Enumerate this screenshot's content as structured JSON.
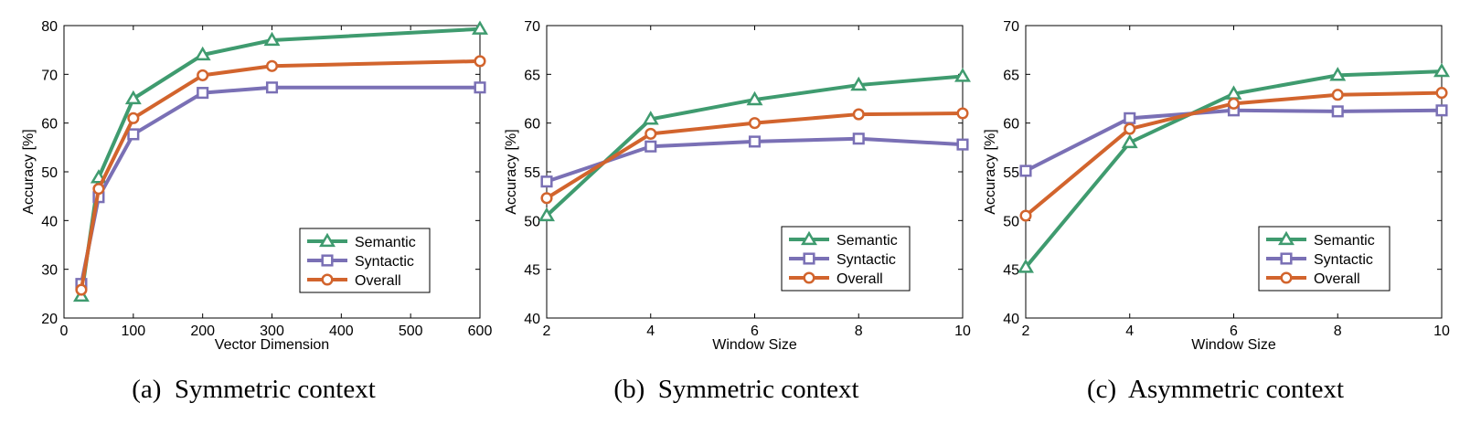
{
  "colors": {
    "semantic": "#3f9b6f",
    "syntactic": "#7a70b5",
    "overall": "#d2642d"
  },
  "chart_data": [
    {
      "type": "line",
      "caption": "(a)  Symmetric context",
      "xlabel": "Vector Dimension",
      "ylabel": "Accuracy [%]",
      "xlim": [
        0,
        600
      ],
      "ylim": [
        20,
        80
      ],
      "xticks": [
        0,
        100,
        200,
        300,
        400,
        500,
        600
      ],
      "yticks": [
        20,
        30,
        40,
        50,
        60,
        70,
        80
      ],
      "x": [
        25,
        50,
        100,
        200,
        300,
        600
      ],
      "legend": "bottom-right",
      "series": [
        {
          "name": "Semantic",
          "marker": "triangle",
          "values": [
            24.5,
            48.8,
            65.0,
            74.0,
            77.0,
            79.3
          ]
        },
        {
          "name": "Syntactic",
          "marker": "square",
          "values": [
            27.0,
            44.8,
            57.7,
            66.2,
            67.3,
            67.3
          ]
        },
        {
          "name": "Overall",
          "marker": "circle",
          "values": [
            25.8,
            46.5,
            61.0,
            69.8,
            71.7,
            72.7
          ]
        }
      ]
    },
    {
      "type": "line",
      "caption": "(b)  Symmetric context",
      "xlabel": "Window Size",
      "ylabel": "Accuracy [%]",
      "xlim": [
        2,
        10
      ],
      "ylim": [
        40,
        70
      ],
      "xticks": [
        2,
        4,
        6,
        8,
        10
      ],
      "yticks": [
        40,
        45,
        50,
        55,
        60,
        65,
        70
      ],
      "x": [
        2,
        4,
        6,
        8,
        10
      ],
      "legend": "bottom-right",
      "series": [
        {
          "name": "Semantic",
          "marker": "triangle",
          "values": [
            50.5,
            60.4,
            62.4,
            63.9,
            64.8
          ]
        },
        {
          "name": "Syntactic",
          "marker": "square",
          "values": [
            54.0,
            57.6,
            58.1,
            58.4,
            57.8
          ]
        },
        {
          "name": "Overall",
          "marker": "circle",
          "values": [
            52.3,
            58.9,
            60.0,
            60.9,
            61.0
          ]
        }
      ]
    },
    {
      "type": "line",
      "caption": "(c)  Asymmetric context",
      "xlabel": "Window Size",
      "ylabel": "Accuracy [%]",
      "xlim": [
        2,
        10
      ],
      "ylim": [
        40,
        70
      ],
      "xticks": [
        2,
        4,
        6,
        8,
        10
      ],
      "yticks": [
        40,
        45,
        50,
        55,
        60,
        65,
        70
      ],
      "x": [
        2,
        4,
        6,
        8,
        10
      ],
      "legend": "bottom-right",
      "series": [
        {
          "name": "Semantic",
          "marker": "triangle",
          "values": [
            45.2,
            58.0,
            63.0,
            64.9,
            65.3
          ]
        },
        {
          "name": "Syntactic",
          "marker": "square",
          "values": [
            55.1,
            60.5,
            61.3,
            61.2,
            61.3
          ]
        },
        {
          "name": "Overall",
          "marker": "circle",
          "values": [
            50.5,
            59.4,
            62.0,
            62.9,
            63.1
          ]
        }
      ]
    }
  ]
}
